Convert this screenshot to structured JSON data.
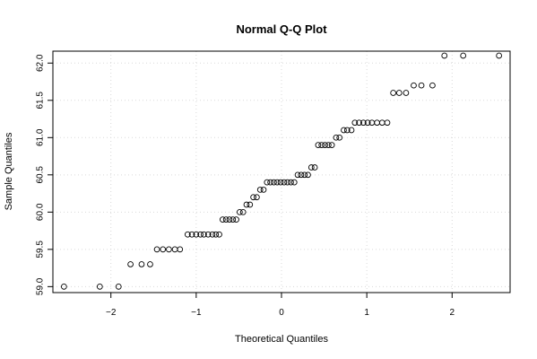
{
  "chart_data": {
    "type": "scatter",
    "title": "Normal Q-Q Plot",
    "xlabel": "Theoretical Quantiles",
    "ylabel": "Sample Quantiles",
    "xlim": [
      -2.68,
      2.68
    ],
    "ylim": [
      58.92,
      62.16
    ],
    "grid": true,
    "x_ticks": [
      -2,
      -1,
      0,
      1,
      2
    ],
    "x_tick_labels": [
      "−2",
      "−1",
      "0",
      "1",
      "2"
    ],
    "y_ticks": [
      59.0,
      59.5,
      60.0,
      60.5,
      61.0,
      61.5,
      62.0
    ],
    "y_tick_labels": [
      "59.0",
      "59.5",
      "60.0",
      "60.5",
      "61.0",
      "61.5",
      "62.0"
    ],
    "points": [
      {
        "x": -2.55,
        "y": 59.0
      },
      {
        "x": -2.13,
        "y": 59.0
      },
      {
        "x": -1.91,
        "y": 59.0
      },
      {
        "x": -1.77,
        "y": 59.3
      },
      {
        "x": -1.64,
        "y": 59.3
      },
      {
        "x": -1.54,
        "y": 59.3
      },
      {
        "x": -1.46,
        "y": 59.5
      },
      {
        "x": -1.39,
        "y": 59.5
      },
      {
        "x": -1.32,
        "y": 59.5
      },
      {
        "x": -1.25,
        "y": 59.5
      },
      {
        "x": -1.19,
        "y": 59.5
      },
      {
        "x": -1.1,
        "y": 59.7
      },
      {
        "x": -1.05,
        "y": 59.7
      },
      {
        "x": -1.0,
        "y": 59.7
      },
      {
        "x": -0.95,
        "y": 59.7
      },
      {
        "x": -0.91,
        "y": 59.7
      },
      {
        "x": -0.86,
        "y": 59.7
      },
      {
        "x": -0.81,
        "y": 59.7
      },
      {
        "x": -0.77,
        "y": 59.7
      },
      {
        "x": -0.73,
        "y": 59.7
      },
      {
        "x": -0.69,
        "y": 59.9
      },
      {
        "x": -0.65,
        "y": 59.9
      },
      {
        "x": -0.61,
        "y": 59.9
      },
      {
        "x": -0.57,
        "y": 59.9
      },
      {
        "x": -0.53,
        "y": 59.9
      },
      {
        "x": -0.49,
        "y": 60.0
      },
      {
        "x": -0.45,
        "y": 60.0
      },
      {
        "x": -0.41,
        "y": 60.1
      },
      {
        "x": -0.37,
        "y": 60.1
      },
      {
        "x": -0.33,
        "y": 60.2
      },
      {
        "x": -0.29,
        "y": 60.2
      },
      {
        "x": -0.25,
        "y": 60.3
      },
      {
        "x": -0.21,
        "y": 60.3
      },
      {
        "x": -0.17,
        "y": 60.4
      },
      {
        "x": -0.13,
        "y": 60.4
      },
      {
        "x": -0.09,
        "y": 60.4
      },
      {
        "x": -0.05,
        "y": 60.4
      },
      {
        "x": -0.01,
        "y": 60.4
      },
      {
        "x": 0.03,
        "y": 60.4
      },
      {
        "x": 0.07,
        "y": 60.4
      },
      {
        "x": 0.11,
        "y": 60.4
      },
      {
        "x": 0.15,
        "y": 60.4
      },
      {
        "x": 0.19,
        "y": 60.5
      },
      {
        "x": 0.23,
        "y": 60.5
      },
      {
        "x": 0.27,
        "y": 60.5
      },
      {
        "x": 0.31,
        "y": 60.5
      },
      {
        "x": 0.35,
        "y": 60.6
      },
      {
        "x": 0.39,
        "y": 60.6
      },
      {
        "x": 0.43,
        "y": 60.9
      },
      {
        "x": 0.47,
        "y": 60.9
      },
      {
        "x": 0.51,
        "y": 60.9
      },
      {
        "x": 0.55,
        "y": 60.9
      },
      {
        "x": 0.59,
        "y": 60.9
      },
      {
        "x": 0.64,
        "y": 61.0
      },
      {
        "x": 0.68,
        "y": 61.0
      },
      {
        "x": 0.73,
        "y": 61.1
      },
      {
        "x": 0.77,
        "y": 61.1
      },
      {
        "x": 0.82,
        "y": 61.1
      },
      {
        "x": 0.86,
        "y": 61.2
      },
      {
        "x": 0.91,
        "y": 61.2
      },
      {
        "x": 0.96,
        "y": 61.2
      },
      {
        "x": 1.01,
        "y": 61.2
      },
      {
        "x": 1.06,
        "y": 61.2
      },
      {
        "x": 1.12,
        "y": 61.2
      },
      {
        "x": 1.18,
        "y": 61.2
      },
      {
        "x": 1.24,
        "y": 61.2
      },
      {
        "x": 1.31,
        "y": 61.6
      },
      {
        "x": 1.38,
        "y": 61.6
      },
      {
        "x": 1.46,
        "y": 61.6
      },
      {
        "x": 1.55,
        "y": 61.7
      },
      {
        "x": 1.64,
        "y": 61.7
      },
      {
        "x": 1.77,
        "y": 61.7
      },
      {
        "x": 1.91,
        "y": 62.1
      },
      {
        "x": 2.13,
        "y": 62.1
      },
      {
        "x": 2.55,
        "y": 62.1
      }
    ]
  }
}
